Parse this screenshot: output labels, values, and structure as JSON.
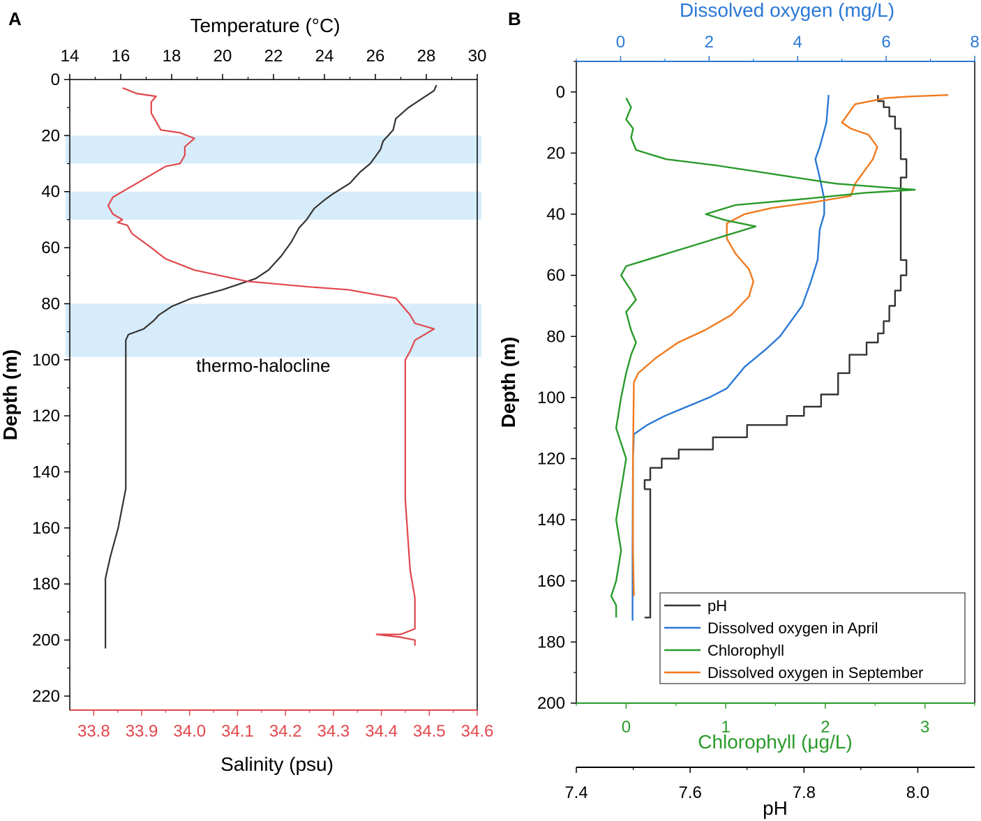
{
  "chart_data": [
    {
      "panel": "A",
      "type": "line",
      "ylabel": "Depth (m)",
      "ylim": [
        0,
        225
      ],
      "y_ticks": [
        "0",
        "20",
        "40",
        "60",
        "80",
        "100",
        "120",
        "140",
        "160",
        "180",
        "200",
        "220"
      ],
      "top_axis": {
        "label": "Temperature (°C)",
        "range": [
          14,
          30
        ],
        "ticks": [
          "14",
          "16",
          "18",
          "20",
          "22",
          "24",
          "26",
          "28",
          "30"
        ],
        "color": "#000000"
      },
      "bottom_axis": {
        "label": "Salinity (psu)",
        "range": [
          33.75,
          34.6
        ],
        "ticks": [
          "33.8",
          "33.9",
          "34.0",
          "34.1",
          "34.2",
          "34.3",
          "34.4",
          "34.5",
          "34.6"
        ],
        "color": "#e0474c"
      },
      "bands": [
        [
          20,
          30
        ],
        [
          40,
          50
        ],
        [
          80,
          99
        ]
      ],
      "band_color": "#d6ecfa",
      "annotation": {
        "text": "thermo-halocline",
        "depth": 102,
        "temperature": 21.6
      },
      "series": [
        {
          "name": "Temperature",
          "axis": "top",
          "color": "#333333",
          "points": [
            [
              28.4,
              2
            ],
            [
              28.3,
              4
            ],
            [
              27.8,
              7
            ],
            [
              27.3,
              10
            ],
            [
              26.8,
              14
            ],
            [
              26.7,
              18
            ],
            [
              26.5,
              20
            ],
            [
              26.3,
              22
            ],
            [
              26.2,
              25
            ],
            [
              25.8,
              30
            ],
            [
              25.4,
              33
            ],
            [
              25.0,
              37
            ],
            [
              24.3,
              41
            ],
            [
              24.0,
              43
            ],
            [
              23.6,
              46
            ],
            [
              23.3,
              50
            ],
            [
              23.0,
              53
            ],
            [
              22.7,
              58
            ],
            [
              22.3,
              63
            ],
            [
              21.8,
              68
            ],
            [
              21.3,
              71
            ],
            [
              20.0,
              75
            ],
            [
              18.8,
              78
            ],
            [
              18.0,
              81
            ],
            [
              17.5,
              84
            ],
            [
              17.3,
              86
            ],
            [
              16.9,
              89
            ],
            [
              16.3,
              91
            ],
            [
              16.2,
              93
            ],
            [
              16.2,
              110
            ],
            [
              16.2,
              130
            ],
            [
              16.2,
              146
            ],
            [
              15.9,
              160
            ],
            [
              15.6,
              170
            ],
            [
              15.4,
              178
            ],
            [
              15.4,
              190
            ],
            [
              15.4,
              203
            ]
          ]
        },
        {
          "name": "Salinity",
          "axis": "bottom",
          "color": "#e0474c",
          "points": [
            [
              33.86,
              3
            ],
            [
              33.89,
              5
            ],
            [
              33.93,
              6
            ],
            [
              33.92,
              8
            ],
            [
              33.92,
              12
            ],
            [
              33.93,
              15
            ],
            [
              33.94,
              18
            ],
            [
              33.98,
              19
            ],
            [
              34.01,
              21
            ],
            [
              33.99,
              24
            ],
            [
              33.99,
              27
            ],
            [
              33.98,
              30
            ],
            [
              33.95,
              31
            ],
            [
              33.89,
              37
            ],
            [
              33.84,
              42
            ],
            [
              33.83,
              45
            ],
            [
              33.84,
              48
            ],
            [
              33.86,
              50
            ],
            [
              33.85,
              51
            ],
            [
              33.87,
              52
            ],
            [
              33.88,
              55
            ],
            [
              33.92,
              60
            ],
            [
              33.95,
              64
            ],
            [
              34.01,
              68
            ],
            [
              34.12,
              72
            ],
            [
              34.25,
              74
            ],
            [
              34.33,
              75
            ],
            [
              34.43,
              78
            ],
            [
              34.46,
              84
            ],
            [
              34.47,
              87
            ],
            [
              34.51,
              89
            ],
            [
              34.47,
              93
            ],
            [
              34.46,
              97
            ],
            [
              34.45,
              100
            ],
            [
              34.45,
              150
            ],
            [
              34.46,
              175
            ],
            [
              34.47,
              185
            ],
            [
              34.47,
              196
            ],
            [
              34.44,
              198
            ],
            [
              34.39,
              198
            ],
            [
              34.44,
              199
            ],
            [
              34.47,
              200
            ],
            [
              34.47,
              202
            ]
          ]
        }
      ]
    },
    {
      "panel": "B",
      "type": "line",
      "ylabel": "Depth (m)",
      "ylim": [
        -10,
        200
      ],
      "y_ticks": [
        "0",
        "20",
        "40",
        "60",
        "80",
        "100",
        "120",
        "140",
        "160",
        "180",
        "200"
      ],
      "top_axis": {
        "label": "Dissolved oxygen (mg/L)",
        "range": [
          -1,
          8
        ],
        "ticks": [
          "0",
          "2",
          "4",
          "6",
          "8"
        ],
        "color": "#2a78d6"
      },
      "bottom_axis": {
        "label": "Chlorophyll (μg/L)",
        "range": [
          -0.5,
          3.5
        ],
        "ticks": [
          "0",
          "1",
          "2",
          "3"
        ],
        "color": "#2a9a2a"
      },
      "ph_axis": {
        "label": "pH",
        "range": [
          7.4,
          8.1
        ],
        "ticks": [
          "7.4",
          "7.6",
          "7.8",
          "8.0"
        ],
        "color": "#000000"
      },
      "legend": [
        "pH",
        "Dissolved oxygen in April",
        "Chlorophyll",
        "Dissolved oxygen in September"
      ],
      "series": [
        {
          "name": "pH",
          "axis": "ph",
          "color": "#333333",
          "points": [
            [
              7.93,
              1
            ],
            [
              7.94,
              3
            ],
            [
              7.95,
              5
            ],
            [
              7.96,
              8
            ],
            [
              7.97,
              12
            ],
            [
              7.98,
              22
            ],
            [
              7.97,
              28
            ],
            [
              7.97,
              42
            ],
            [
              7.98,
              55
            ],
            [
              7.97,
              60
            ],
            [
              7.96,
              65
            ],
            [
              7.95,
              70
            ],
            [
              7.94,
              75
            ],
            [
              7.93,
              79
            ],
            [
              7.91,
              82
            ],
            [
              7.88,
              86
            ],
            [
              7.86,
              92
            ],
            [
              7.83,
              99
            ],
            [
              7.8,
              103
            ],
            [
              7.77,
              106
            ],
            [
              7.7,
              109
            ],
            [
              7.64,
              113
            ],
            [
              7.58,
              117
            ],
            [
              7.55,
              120
            ],
            [
              7.53,
              123
            ],
            [
              7.52,
              127
            ],
            [
              7.53,
              130
            ],
            [
              7.53,
              145
            ],
            [
              7.53,
              160
            ],
            [
              7.53,
              170
            ],
            [
              7.52,
              172
            ]
          ]
        },
        {
          "name": "Dissolved oxygen in April",
          "axis": "top",
          "color": "#2a78d6",
          "points": [
            [
              4.7,
              1
            ],
            [
              4.65,
              10
            ],
            [
              4.5,
              18
            ],
            [
              4.4,
              22
            ],
            [
              4.5,
              28
            ],
            [
              4.6,
              35
            ],
            [
              4.6,
              40
            ],
            [
              4.5,
              45
            ],
            [
              4.45,
              55
            ],
            [
              4.3,
              62
            ],
            [
              4.1,
              70
            ],
            [
              3.8,
              76
            ],
            [
              3.6,
              80
            ],
            [
              3.3,
              84
            ],
            [
              2.8,
              90
            ],
            [
              2.4,
              97
            ],
            [
              2.0,
              100
            ],
            [
              1.5,
              103
            ],
            [
              1.0,
              106
            ],
            [
              0.6,
              109
            ],
            [
              0.3,
              112
            ],
            [
              0.28,
              120
            ],
            [
              0.27,
              150
            ],
            [
              0.27,
              173
            ]
          ]
        },
        {
          "name": "Dissolved oxygen in September",
          "axis": "top",
          "color": "#f07a1e",
          "points": [
            [
              7.4,
              1
            ],
            [
              6.5,
              1.5
            ],
            [
              6.0,
              2
            ],
            [
              5.3,
              4
            ],
            [
              5.0,
              10
            ],
            [
              5.2,
              12
            ],
            [
              5.6,
              14
            ],
            [
              5.8,
              18
            ],
            [
              5.7,
              22
            ],
            [
              5.3,
              30
            ],
            [
              5.2,
              34
            ],
            [
              4.4,
              36
            ],
            [
              3.4,
              38
            ],
            [
              2.8,
              40
            ],
            [
              2.4,
              43
            ],
            [
              2.4,
              48
            ],
            [
              2.6,
              53
            ],
            [
              2.9,
              58
            ],
            [
              3.0,
              62
            ],
            [
              2.9,
              67
            ],
            [
              2.5,
              73
            ],
            [
              1.9,
              78
            ],
            [
              1.3,
              82
            ],
            [
              0.8,
              87
            ],
            [
              0.4,
              92
            ],
            [
              0.3,
              95
            ],
            [
              0.28,
              120
            ],
            [
              0.28,
              150
            ],
            [
              0.3,
              165
            ]
          ]
        },
        {
          "name": "Chlorophyll",
          "axis": "bottom",
          "color": "#2a9a2a",
          "points": [
            [
              0.0,
              2
            ],
            [
              0.05,
              5
            ],
            [
              0.0,
              9
            ],
            [
              0.07,
              12
            ],
            [
              0.05,
              15
            ],
            [
              0.1,
              19
            ],
            [
              0.4,
              22
            ],
            [
              0.9,
              24
            ],
            [
              1.5,
              27
            ],
            [
              2.1,
              30
            ],
            [
              2.9,
              32
            ],
            [
              2.4,
              33
            ],
            [
              1.8,
              35
            ],
            [
              1.1,
              37
            ],
            [
              0.8,
              40
            ],
            [
              1.0,
              42
            ],
            [
              1.3,
              44
            ],
            [
              1.0,
              47
            ],
            [
              0.8,
              49
            ],
            [
              0.5,
              52
            ],
            [
              0.2,
              55
            ],
            [
              0.0,
              57
            ],
            [
              -0.05,
              60
            ],
            [
              0.05,
              65
            ],
            [
              0.1,
              68
            ],
            [
              0.0,
              72
            ],
            [
              0.05,
              78
            ],
            [
              0.1,
              82
            ],
            [
              0.05,
              86
            ],
            [
              0.0,
              92
            ],
            [
              -0.05,
              100
            ],
            [
              -0.1,
              110
            ],
            [
              0.0,
              120
            ],
            [
              -0.05,
              130
            ],
            [
              -0.1,
              140
            ],
            [
              -0.05,
              150
            ],
            [
              -0.1,
              160
            ],
            [
              -0.15,
              165
            ],
            [
              -0.1,
              168
            ],
            [
              -0.1,
              172
            ]
          ]
        }
      ]
    }
  ]
}
